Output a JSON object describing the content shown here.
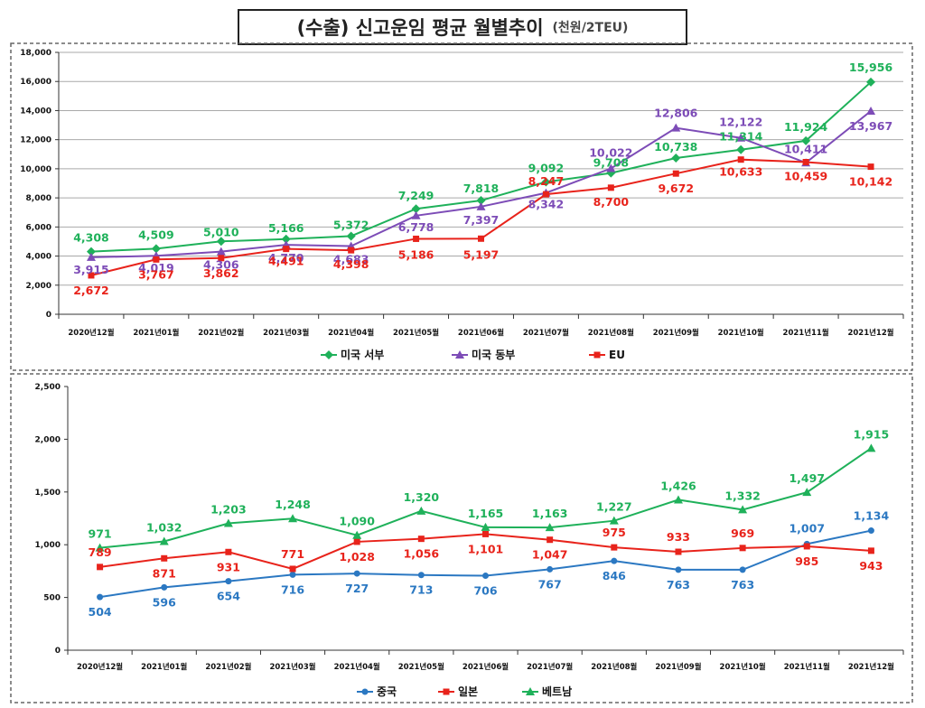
{
  "title": {
    "main": "(수출) 신고운임 평균 월별추이",
    "unit": "(천원/2TEU)"
  },
  "chart_data": [
    {
      "type": "line",
      "x_labels": [
        "2020년12월",
        "2021년01월",
        "2021년02월",
        "2021년03월",
        "2021년04월",
        "2021년05월",
        "2021년06월",
        "2021년07월",
        "2021년08월",
        "2021년09월",
        "2021년10월",
        "2021년11월",
        "2021년12월"
      ],
      "ylim": [
        0,
        18000
      ],
      "y_ticks": [
        0,
        2000,
        4000,
        6000,
        8000,
        10000,
        12000,
        14000,
        16000,
        18000
      ],
      "grid": true,
      "legend_position": "bottom",
      "series": [
        {
          "name": "미국 서부",
          "color": "#1fb15a",
          "marker": "diamond",
          "values": [
            4308,
            4509,
            5010,
            5166,
            5372,
            7249,
            7818,
            9092,
            9708,
            10738,
            11314,
            11924,
            15956
          ]
        },
        {
          "name": "미국 동부",
          "color": "#7d4cb7",
          "marker": "triangle",
          "values": [
            3915,
            4019,
            4306,
            4770,
            4683,
            6778,
            7397,
            8342,
            10022,
            12806,
            12122,
            10411,
            13967
          ]
        },
        {
          "name": "EU",
          "color": "#e8231b",
          "marker": "square",
          "values": [
            2672,
            3767,
            3862,
            4491,
            4398,
            5186,
            5197,
            8247,
            8700,
            9672,
            10633,
            10459,
            10142
          ]
        }
      ]
    },
    {
      "type": "line",
      "x_labels": [
        "2020년12월",
        "2021년01월",
        "2021년02월",
        "2021년03월",
        "2021년04월",
        "2021년05월",
        "2021년06월",
        "2021년07월",
        "2021년08월",
        "2021년09월",
        "2021년10월",
        "2021년11월",
        "2021년12월"
      ],
      "ylim": [
        0,
        2500
      ],
      "y_ticks": [
        0,
        500,
        1000,
        1500,
        2000,
        2500
      ],
      "grid": false,
      "legend_position": "bottom",
      "series": [
        {
          "name": "중국",
          "color": "#2b78c2",
          "marker": "circle",
          "values": [
            504,
            596,
            654,
            716,
            727,
            713,
            706,
            767,
            846,
            763,
            763,
            1007,
            1134
          ]
        },
        {
          "name": "일본",
          "color": "#e8231b",
          "marker": "square",
          "values": [
            789,
            871,
            931,
            771,
            1028,
            1056,
            1101,
            1047,
            975,
            933,
            969,
            985,
            943
          ]
        },
        {
          "name": "베트남",
          "color": "#1fb15a",
          "marker": "triangle",
          "values": [
            971,
            1032,
            1203,
            1248,
            1090,
            1320,
            1165,
            1163,
            1227,
            1426,
            1332,
            1497,
            1915
          ]
        }
      ]
    }
  ]
}
